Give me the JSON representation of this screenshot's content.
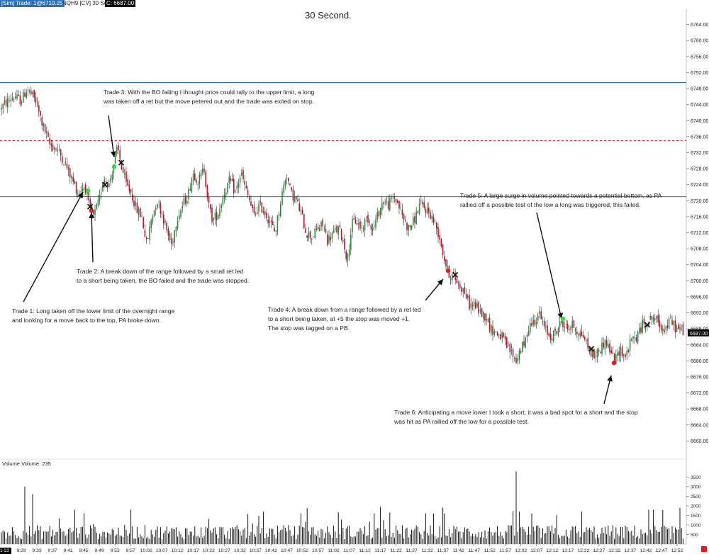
{
  "toolbar": {
    "sim": "[Sim]",
    "trade": "Trade: 1@6710.25",
    "instrument": "NQH9 [CV]  30 Sec  #1",
    "last_label": "C: 6687.00"
  },
  "title": "30 Second.",
  "volume_panel": {
    "label": "Volume  Volume: 235"
  },
  "colors": {
    "up_candle": "#2e8b3e",
    "down_candle": "#b2182b",
    "wick": "#222222",
    "blue_level": "#1f6fb6",
    "red_level": "#d62728",
    "entry_long": "#33d94d",
    "entry_short": "#e02020",
    "exit_marker": "#111111",
    "volume_bar": "#111111",
    "last_price_badge": "#000000"
  },
  "annotations": {
    "trade1": [
      "Trade 1:  Long taken off the lower limit of the overnight range",
      "and looking for a move back to the top, PA broke down."
    ],
    "trade2": [
      "Trade 2:  A break down of the range followed by a small ret led",
      "to a short being taken, the BO failed and the trade was stopped."
    ],
    "trade3": [
      "Trade 3:  With the BO failing I thought price could rally to the upper limit, a long",
      "was taken off a ret but the move petered out and the trade was exited on stop."
    ],
    "trade4": [
      "Trade 4:  A break down from a range followed by a ret led",
      "to a short being taken, at +5 the stop was moved +1.",
      "The stop was tagged on a PB."
    ],
    "trade5": [
      "Trade 5:  A large surge in volume pointed towards a potential bottom, as PA",
      "rallied off a possible test of the low a long was triggered, this failed."
    ],
    "trade6": [
      "Trade 6:  Anticipating a move lower I took a short, it was a bad spot for a short and the stop",
      "was hit as PA rallied off the low for a possible test."
    ]
  },
  "corner_label": "1-22",
  "chart_data": {
    "type": "candlestick",
    "title": "30 Second.",
    "instrument": "NQH9",
    "timeframe": "30 Sec",
    "ylim": [
      6656,
      6768
    ],
    "y_ticks": [
      "6764.00",
      "6760.00",
      "6756.00",
      "6752.00",
      "6748.00",
      "6744.00",
      "6740.00",
      "6736.00",
      "6732.00",
      "6728.00",
      "6724.00",
      "6720.00",
      "6716.00",
      "6712.00",
      "6708.00",
      "6704.00",
      "6700.00",
      "6696.00",
      "6692.00",
      "6688.00",
      "6684.00",
      "6680.00",
      "6676.00",
      "6672.00",
      "6668.00",
      "6664.00",
      "6660.00"
    ],
    "last_price": "6687.00",
    "last_price_value": 6687,
    "x_ticks": [
      "9:29",
      "9:33",
      "9:37",
      "9:41",
      "9:45",
      "9:49",
      "9:53",
      "9:57",
      "10:02",
      "10:07",
      "10:12",
      "10:17",
      "10:22",
      "10:27",
      "10:32",
      "10:37",
      "10:42",
      "10:47",
      "10:52",
      "10:57",
      "11:02",
      "11:07",
      "11:12",
      "11:17",
      "11:22",
      "11:27",
      "11:32",
      "11:37",
      "11:42",
      "11:47",
      "11:52",
      "11:57",
      "12:02",
      "12:07",
      "12:12",
      "12:17",
      "12:22",
      "12:27",
      "12:32",
      "12:37",
      "12:42",
      "12:47",
      "12:52"
    ],
    "price_path": [
      [
        0,
        6743
      ],
      [
        18,
        6746
      ],
      [
        30,
        6745
      ],
      [
        38,
        6748
      ],
      [
        50,
        6745
      ],
      [
        60,
        6739
      ],
      [
        70,
        6734
      ],
      [
        80,
        6733
      ],
      [
        90,
        6730
      ],
      [
        100,
        6726
      ],
      [
        110,
        6722
      ],
      [
        120,
        6724
      ],
      [
        126,
        6718
      ],
      [
        132,
        6716
      ],
      [
        140,
        6720
      ],
      [
        146,
        6726
      ],
      [
        154,
        6724
      ],
      [
        160,
        6729
      ],
      [
        166,
        6733
      ],
      [
        172,
        6728
      ],
      [
        178,
        6724
      ],
      [
        185,
        6722
      ],
      [
        192,
        6718
      ],
      [
        200,
        6716
      ],
      [
        207,
        6709
      ],
      [
        214,
        6716
      ],
      [
        222,
        6720
      ],
      [
        230,
        6716
      ],
      [
        236,
        6712
      ],
      [
        242,
        6709
      ],
      [
        250,
        6716
      ],
      [
        258,
        6719
      ],
      [
        266,
        6722
      ],
      [
        272,
        6727
      ],
      [
        280,
        6725
      ],
      [
        288,
        6728
      ],
      [
        294,
        6719
      ],
      [
        300,
        6715
      ],
      [
        308,
        6717
      ],
      [
        316,
        6722
      ],
      [
        324,
        6725
      ],
      [
        332,
        6722
      ],
      [
        340,
        6727
      ],
      [
        346,
        6723
      ],
      [
        352,
        6720
      ],
      [
        358,
        6716
      ],
      [
        366,
        6719
      ],
      [
        374,
        6717
      ],
      [
        380,
        6715
      ],
      [
        388,
        6712
      ],
      [
        396,
        6720
      ],
      [
        404,
        6727
      ],
      [
        410,
        6722
      ],
      [
        418,
        6720
      ],
      [
        426,
        6716
      ],
      [
        432,
        6712
      ],
      [
        440,
        6711
      ],
      [
        448,
        6713
      ],
      [
        456,
        6714
      ],
      [
        462,
        6710
      ],
      [
        470,
        6712
      ],
      [
        478,
        6713
      ],
      [
        484,
        6710
      ],
      [
        490,
        6705
      ],
      [
        496,
        6714
      ],
      [
        502,
        6715
      ],
      [
        510,
        6713
      ],
      [
        518,
        6716
      ],
      [
        526,
        6713
      ],
      [
        534,
        6717
      ],
      [
        540,
        6720
      ],
      [
        548,
        6719
      ],
      [
        556,
        6721
      ],
      [
        562,
        6719
      ],
      [
        568,
        6716
      ],
      [
        576,
        6713
      ],
      [
        584,
        6715
      ],
      [
        592,
        6719
      ],
      [
        600,
        6718
      ],
      [
        606,
        6717
      ],
      [
        614,
        6714
      ],
      [
        620,
        6711
      ],
      [
        626,
        6706
      ],
      [
        632,
        6702
      ],
      [
        640,
        6701
      ],
      [
        648,
        6699
      ],
      [
        656,
        6697
      ],
      [
        662,
        6694
      ],
      [
        670,
        6694
      ],
      [
        678,
        6692
      ],
      [
        686,
        6691
      ],
      [
        692,
        6688
      ],
      [
        700,
        6687
      ],
      [
        708,
        6686
      ],
      [
        716,
        6683
      ],
      [
        722,
        6682
      ],
      [
        728,
        6680
      ],
      [
        734,
        6683
      ],
      [
        740,
        6684
      ],
      [
        746,
        6689
      ],
      [
        754,
        6690
      ],
      [
        760,
        6692
      ],
      [
        768,
        6688
      ],
      [
        776,
        6686
      ],
      [
        784,
        6687
      ],
      [
        792,
        6690
      ],
      [
        800,
        6688
      ],
      [
        808,
        6689
      ],
      [
        816,
        6687
      ],
      [
        824,
        6686
      ],
      [
        830,
        6683
      ],
      [
        838,
        6681
      ],
      [
        846,
        6683
      ],
      [
        854,
        6685
      ],
      [
        862,
        6682
      ],
      [
        868,
        6680
      ],
      [
        874,
        6683
      ],
      [
        882,
        6681
      ],
      [
        890,
        6685
      ],
      [
        898,
        6686
      ],
      [
        906,
        6689
      ],
      [
        914,
        6690
      ],
      [
        922,
        6691
      ],
      [
        930,
        6689
      ],
      [
        938,
        6688
      ],
      [
        946,
        6690
      ],
      [
        954,
        6688
      ],
      [
        962,
        6688
      ],
      [
        966,
        6687
      ]
    ],
    "horizontal_levels": [
      {
        "price": 6749.5,
        "style": "solid",
        "color": "#1f6fb6"
      },
      {
        "price": 6735,
        "style": "dashed",
        "color": "#d62728"
      },
      {
        "price": 6721,
        "style": "solid",
        "color": "#1f6fb6"
      }
    ],
    "trades": [
      {
        "trade": 1,
        "side": "long",
        "entry_price": 6722.5,
        "exit_price": 6718.5
      },
      {
        "trade": 2,
        "side": "short",
        "entry_price": 6717.5,
        "exit_price": 6724
      },
      {
        "trade": 3,
        "side": "long",
        "entry_price": 6728.5,
        "exit_price": 6729.5
      },
      {
        "trade": 4,
        "side": "short",
        "entry_price": 6702.5,
        "exit_price": 6701.5
      },
      {
        "trade": 5,
        "side": "long",
        "entry_price": 6690.5,
        "exit_price": 6683
      },
      {
        "trade": 6,
        "side": "short",
        "entry_price": 6679.5,
        "exit_price": 6689
      }
    ],
    "volume": {
      "label": "Volume",
      "last": 235,
      "ylim": [
        0,
        4000
      ],
      "y_ticks": [
        "3500",
        "3000",
        "2500",
        "2000",
        "1500",
        "1000",
        "500"
      ],
      "peaks": [
        [
          34,
          3000
        ],
        [
          47,
          2600
        ],
        [
          106,
          1800
        ],
        [
          371,
          1700
        ],
        [
          627,
          1600
        ],
        [
          728,
          3800
        ],
        [
          733,
          1700
        ],
        [
          915,
          1800
        ]
      ]
    }
  }
}
